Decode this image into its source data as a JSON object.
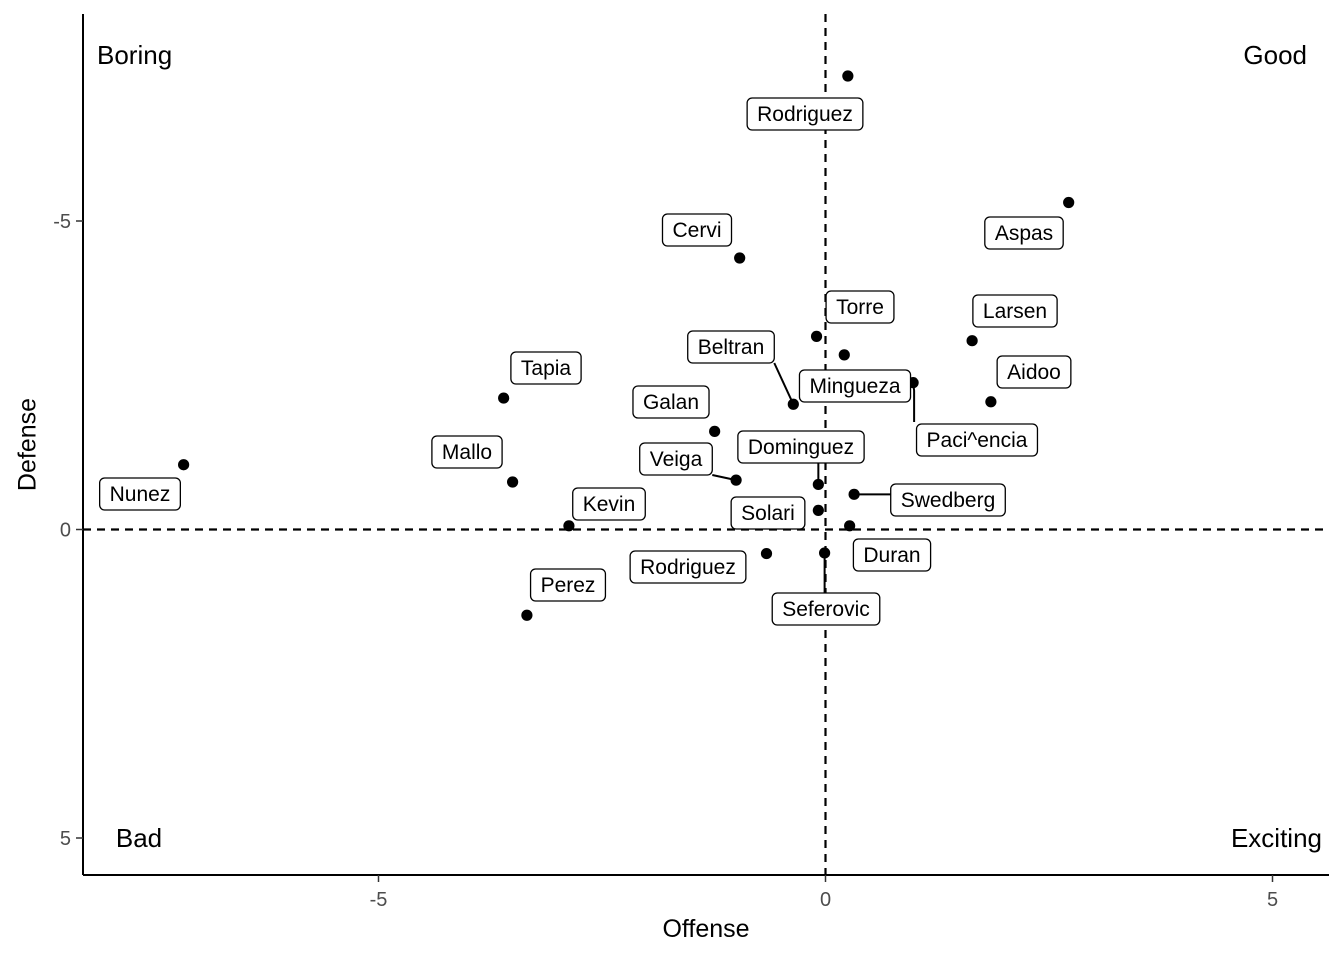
{
  "chart_data": {
    "type": "scatter",
    "xlabel": "Offense",
    "ylabel": "Defense",
    "xlim": [
      -8.2,
      5.6
    ],
    "ylim": [
      5.6,
      -8.4
    ],
    "y_reversed": true,
    "x_ticks": [
      -5,
      0,
      5
    ],
    "x_tick_labels": [
      "-5",
      "0",
      "5"
    ],
    "y_ticks": [
      -5,
      0,
      5
    ],
    "y_tick_labels": [
      "-5",
      "0",
      "5"
    ],
    "reference_lines": {
      "x": 0,
      "y": 0,
      "style": "dashed"
    },
    "grid": false,
    "quadrant_labels": {
      "top_left": "Boring",
      "top_right": "Good",
      "bottom_left": "Bad",
      "bottom_right": "Exciting"
    },
    "points": [
      {
        "label": "Rodriguez",
        "x": 0.25,
        "y": -7.35
      },
      {
        "label": "Aspas",
        "x": 2.72,
        "y": -5.3
      },
      {
        "label": "Cervi",
        "x": -0.96,
        "y": -4.4
      },
      {
        "label": "Torre",
        "x": -0.1,
        "y": -3.13
      },
      {
        "label": "Larsen",
        "x": 1.64,
        "y": -3.06
      },
      {
        "label": "Beltran",
        "x": -0.36,
        "y": -2.03
      },
      {
        "label": "Mingueza",
        "x": 0.21,
        "y": -2.83
      },
      {
        "label": "Paci^encia",
        "x": 0.98,
        "y": -2.38
      },
      {
        "label": "Aidoo",
        "x": 1.85,
        "y": -2.07
      },
      {
        "label": "Tapia",
        "x": -3.6,
        "y": -2.13
      },
      {
        "label": "Galan",
        "x": -1.24,
        "y": -1.59
      },
      {
        "label": "Mallo",
        "x": -3.5,
        "y": -0.77
      },
      {
        "label": "Nunez",
        "x": -7.18,
        "y": -1.05
      },
      {
        "label": "Veiga",
        "x": -1.0,
        "y": -0.8
      },
      {
        "label": "Dominguez",
        "x": -0.08,
        "y": -0.73
      },
      {
        "label": "Swedberg",
        "x": 0.32,
        "y": -0.57
      },
      {
        "label": "Solari",
        "x": -0.08,
        "y": -0.31
      },
      {
        "label": "Kevin",
        "x": -2.87,
        "y": -0.06
      },
      {
        "label": "Duran",
        "x": 0.27,
        "y": -0.06
      },
      {
        "label": "Rodriguez",
        "x": -0.66,
        "y": 0.39
      },
      {
        "label": "Seferovic",
        "x": -0.01,
        "y": 0.38
      },
      {
        "label": "Perez",
        "x": -3.34,
        "y": 1.39
      }
    ]
  }
}
